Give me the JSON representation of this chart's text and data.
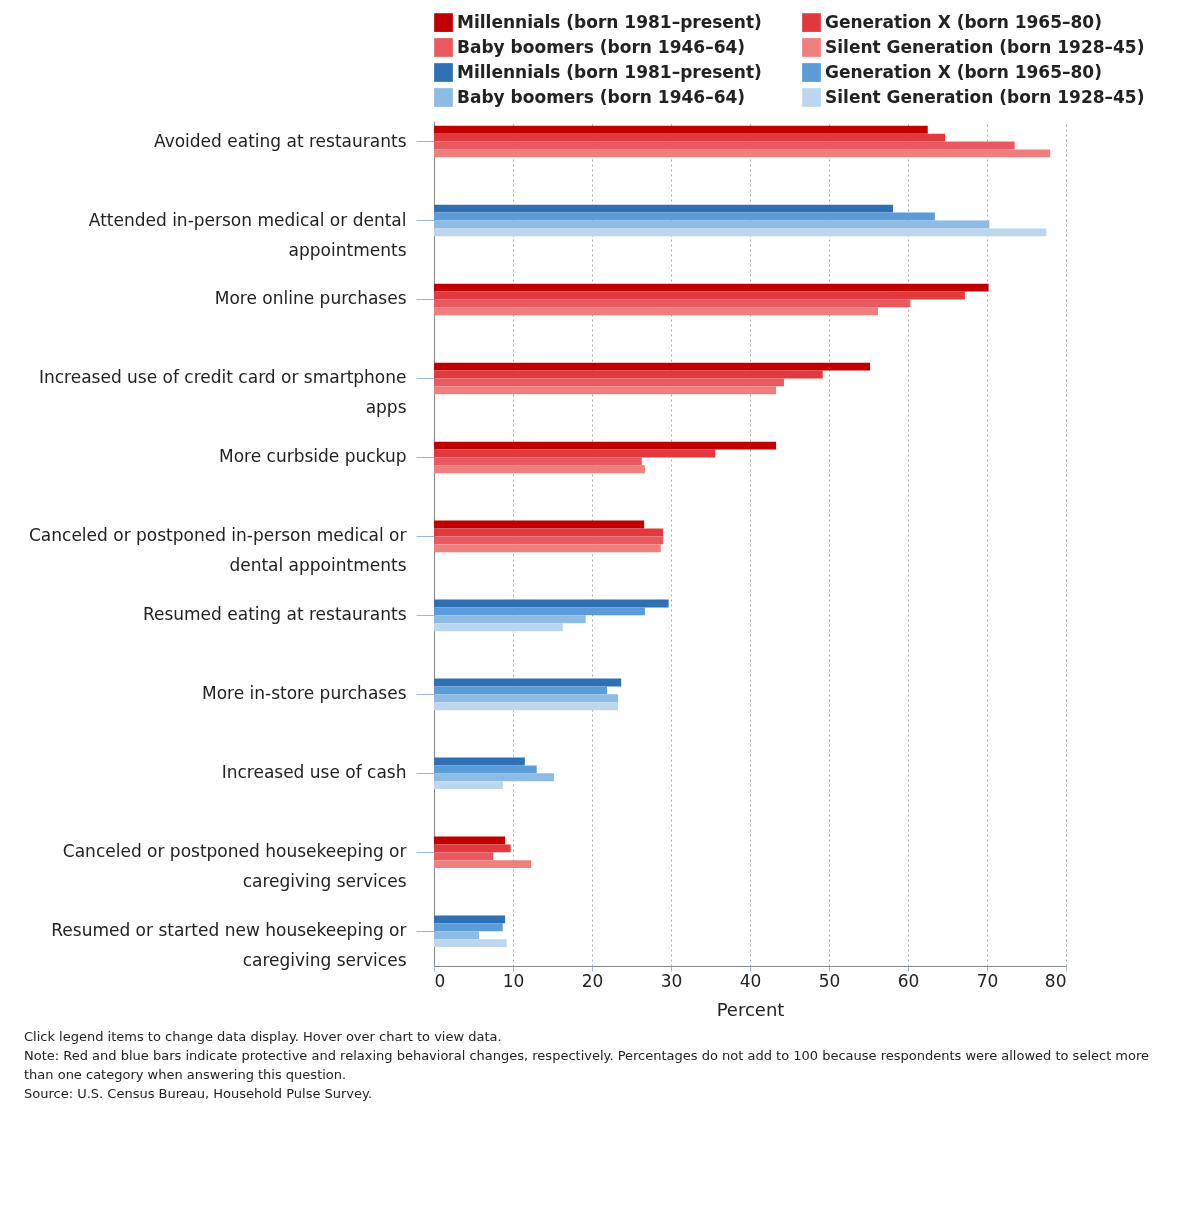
{
  "chart_data": {
    "type": "bar",
    "orientation": "horizontal",
    "xlabel": "Percent",
    "categories": [
      "Avoided eating at restaurants",
      "Attended in-person medical or dental appointments",
      "More online purchases",
      "Increased use of credit card or smartphone apps",
      "More curbside puckup",
      "Canceled or postponed in-person medical or dental appointments",
      "Resumed eating at restaurants",
      "More in-store purchases",
      "Increased use of cash",
      "Canceled or postponed housekeeping or caregiving services",
      "Resumed or started new housekeeping or caregiving services"
    ],
    "series": [
      {
        "name": "Millennials (born 1981–present)",
        "color": "#c00000",
        "values": [
          62.5,
          null,
          70.2,
          55.2,
          43.3,
          26.6,
          null,
          null,
          null,
          9.0,
          null
        ]
      },
      {
        "name": "Generation X (born 1965–80)",
        "color": "#e03a3e",
        "values": [
          64.7,
          null,
          67.2,
          49.2,
          35.6,
          29.0,
          null,
          null,
          null,
          9.7,
          null
        ]
      },
      {
        "name": "Baby boomers (born 1946–64)",
        "color": "#e85a60",
        "values": [
          73.5,
          null,
          60.3,
          44.3,
          26.3,
          29.0,
          null,
          null,
          null,
          7.5,
          null
        ]
      },
      {
        "name": "Silent Generation (born 1928–45)",
        "color": "#ef7e7e",
        "values": [
          78.0,
          null,
          56.2,
          43.3,
          26.7,
          28.7,
          null,
          null,
          null,
          12.3,
          null
        ]
      },
      {
        "name": "Millennials (born 1981–present)",
        "color": "#2f6fb3",
        "values": [
          null,
          58.1,
          null,
          null,
          null,
          null,
          29.7,
          23.7,
          11.5,
          null,
          9.0
        ]
      },
      {
        "name": "Generation X (born 1965–80)",
        "color": "#5b9bd8",
        "values": [
          null,
          63.4,
          null,
          null,
          null,
          null,
          26.7,
          21.9,
          13.0,
          null,
          8.7
        ]
      },
      {
        "name": "Baby boomers (born 1946–64)",
        "color": "#8cbbe4",
        "values": [
          null,
          70.3,
          null,
          null,
          null,
          null,
          19.2,
          23.3,
          15.2,
          null,
          5.7
        ]
      },
      {
        "name": "Silent Generation (born 1928–45)",
        "color": "#bcd6ee",
        "values": [
          null,
          77.5,
          null,
          null,
          null,
          null,
          16.3,
          23.3,
          8.7,
          null,
          9.2
        ]
      }
    ],
    "xlim": [
      0,
      80
    ],
    "xticks": [
      0,
      10,
      20,
      30,
      40,
      50,
      60,
      70,
      80
    ],
    "grid": "x",
    "legend": "top",
    "annotations": [
      "Click legend items to change data display. Hover over chart to view data.",
      "Note: Red and blue bars indicate protective and relaxing behavioral changes, respectively. Percentages do not add to 100 because respondents were allowed to select more than one category when answering this question.",
      "Source: U.S. Census Bureau, Household Pulse Survey."
    ]
  }
}
